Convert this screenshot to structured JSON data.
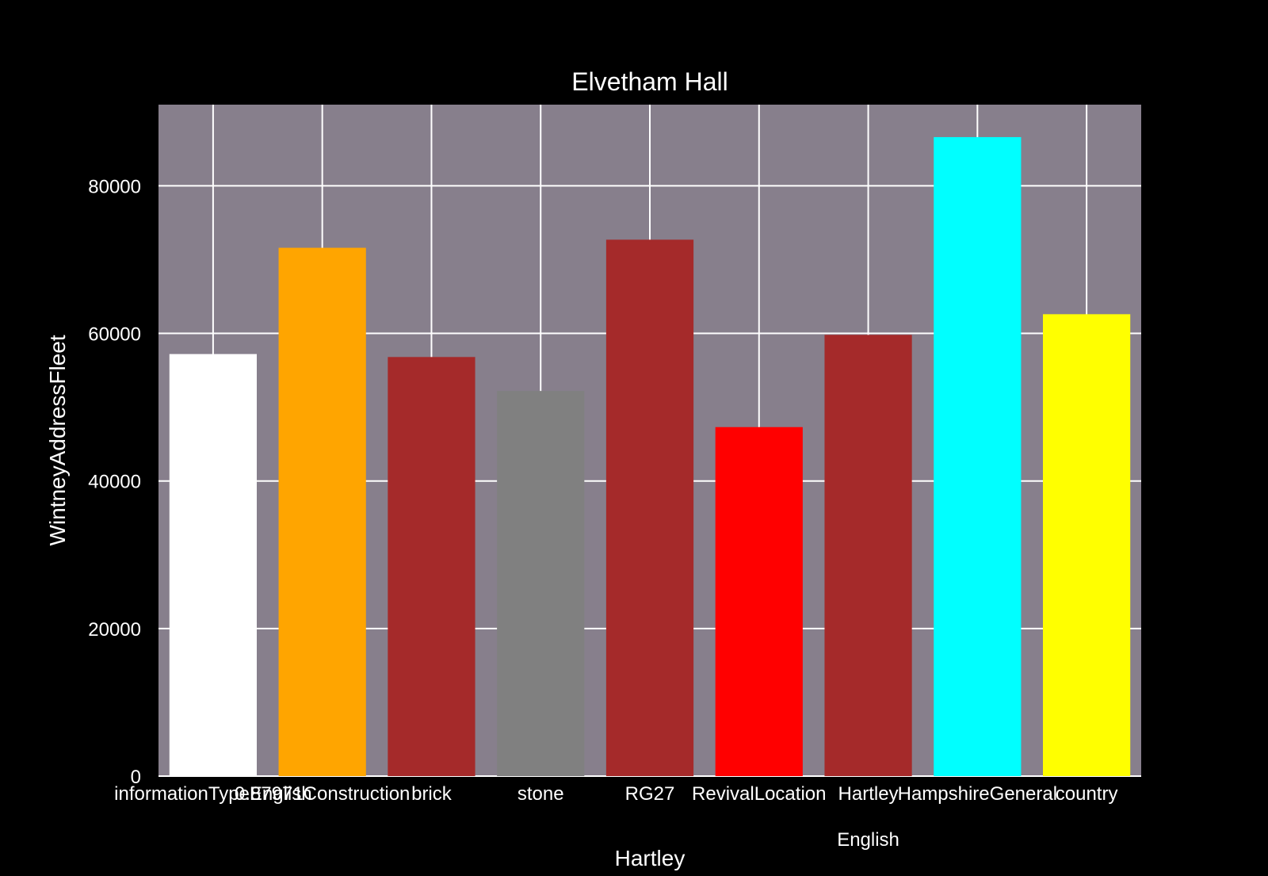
{
  "chart_data": {
    "type": "bar",
    "title": "Elvetham Hall",
    "xlabel": "Hartley",
    "ylabel": "WintneyAddressFleet",
    "categories": [
      "informationTypeEnglish",
      "0.87971Construction",
      "brick",
      "stone",
      "RG27",
      "RevivalLocation",
      "Hartley",
      "HampshireGeneral",
      "country"
    ],
    "category_sublabels": [
      "",
      "",
      "",
      "",
      "",
      "",
      "English",
      "",
      ""
    ],
    "values": [
      57200,
      71600,
      56800,
      52200,
      72700,
      47300,
      59800,
      86600,
      62600
    ],
    "colors": [
      "#ffffff",
      "#ffa500",
      "#a52a2a",
      "#808080",
      "#a52a2a",
      "#ff0000",
      "#a52a2a",
      "#00ffff",
      "#ffff00"
    ],
    "ylim": [
      0,
      91000
    ],
    "yticks": [
      0,
      20000,
      40000,
      60000,
      80000
    ],
    "grid": true,
    "plot_background": "#877f8c",
    "figure_background": "#000000",
    "grid_color": "#ffffff"
  }
}
